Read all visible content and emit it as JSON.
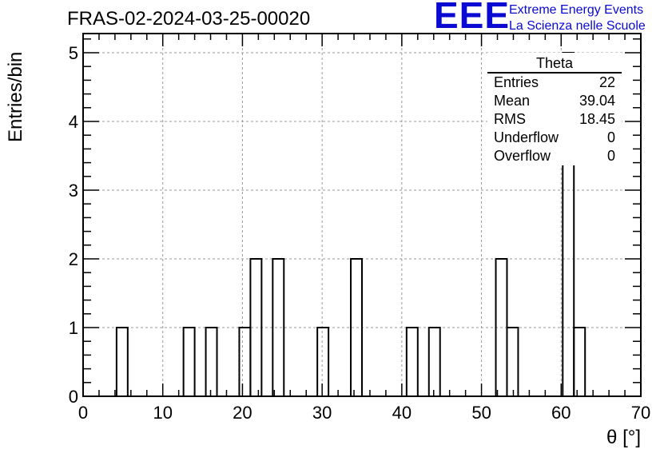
{
  "header": {
    "title": "FRAS-02-2024-03-25-00020",
    "logo_text": "EEE",
    "logo_line1": "Extreme Energy Events",
    "logo_line2": "La Scienza nelle Scuole"
  },
  "stats": {
    "title": "Theta",
    "rows": [
      {
        "label": "Entries",
        "value": "22"
      },
      {
        "label": "Mean",
        "value": "39.04"
      },
      {
        "label": "RMS",
        "value": "18.45"
      },
      {
        "label": "Underflow",
        "value": "0"
      },
      {
        "label": "Overflow",
        "value": "0"
      }
    ]
  },
  "chart_data": {
    "type": "bar",
    "histogram": true,
    "xlabel": "θ [°]",
    "ylabel": "Entries/bin",
    "xlim": [
      0,
      70
    ],
    "ylim": [
      0,
      5.2
    ],
    "grid": true,
    "x_ticks": [
      "0",
      "10",
      "20",
      "30",
      "40",
      "50",
      "60",
      "70"
    ],
    "y_ticks": [
      "0",
      "1",
      "2",
      "3",
      "4",
      "5"
    ],
    "bins": [
      {
        "x0": 4.2,
        "x1": 5.6,
        "value": 1
      },
      {
        "x0": 12.6,
        "x1": 14.0,
        "value": 1
      },
      {
        "x0": 15.4,
        "x1": 16.8,
        "value": 1
      },
      {
        "x0": 19.6,
        "x1": 21.0,
        "value": 1
      },
      {
        "x0": 21.0,
        "x1": 22.4,
        "value": 2
      },
      {
        "x0": 23.8,
        "x1": 25.2,
        "value": 2
      },
      {
        "x0": 29.4,
        "x1": 30.8,
        "value": 1
      },
      {
        "x0": 33.6,
        "x1": 35.0,
        "value": 2
      },
      {
        "x0": 40.6,
        "x1": 42.0,
        "value": 1
      },
      {
        "x0": 43.4,
        "x1": 44.8,
        "value": 1
      },
      {
        "x0": 51.8,
        "x1": 53.2,
        "value": 2
      },
      {
        "x0": 53.2,
        "x1": 54.6,
        "value": 1
      },
      {
        "x0": 60.2,
        "x1": 61.6,
        "value": 5
      },
      {
        "x0": 61.6,
        "x1": 63.0,
        "value": 1
      }
    ]
  }
}
